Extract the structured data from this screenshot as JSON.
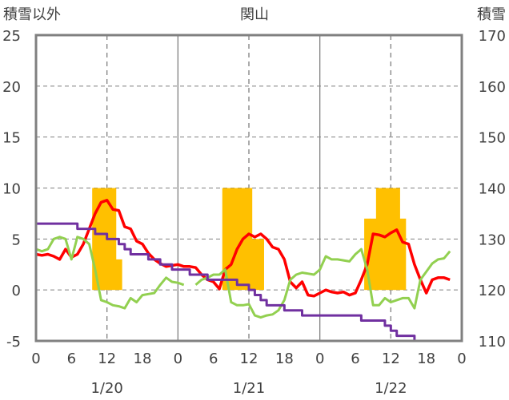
{
  "chart_data": {
    "type": "bar+line",
    "title": "関山",
    "left_axis_label": "積雪以外",
    "right_axis_label": "積雪",
    "left_ylim": [
      -5,
      25
    ],
    "left_ticks": [
      -5,
      0,
      5,
      10,
      15,
      20,
      25
    ],
    "right_ylim": [
      110,
      170
    ],
    "right_ticks": [
      110,
      120,
      130,
      140,
      150,
      160,
      170
    ],
    "xlim": [
      0,
      72
    ],
    "x_tick_positions": [
      0,
      6,
      12,
      18,
      24,
      30,
      36,
      42,
      48,
      54,
      60,
      66,
      72
    ],
    "x_tick_labels": [
      "0",
      "6",
      "12",
      "18",
      "0",
      "6",
      "12",
      "18",
      "0",
      "6",
      "12",
      "18",
      "0"
    ],
    "day_labels": [
      {
        "x": 12,
        "label": "1/20"
      },
      {
        "x": 36,
        "label": "1/21"
      },
      {
        "x": 60,
        "label": "1/22"
      }
    ],
    "grid": {
      "horizontal": "dashed",
      "day_separators": [
        24,
        48
      ],
      "noon_lines": [
        12,
        36,
        60
      ]
    },
    "series": [
      {
        "axis": "left",
        "kind": "bar",
        "color": "#FFC000",
        "points": [
          [
            10,
            10
          ],
          [
            11,
            10
          ],
          [
            12,
            10
          ],
          [
            13,
            10
          ],
          [
            14,
            3
          ],
          [
            32,
            10
          ],
          [
            33,
            10
          ],
          [
            34,
            10
          ],
          [
            35,
            10
          ],
          [
            36,
            10
          ],
          [
            37,
            5
          ],
          [
            38,
            5
          ],
          [
            56,
            7
          ],
          [
            57,
            7
          ],
          [
            58,
            10
          ],
          [
            59,
            10
          ],
          [
            60,
            10
          ],
          [
            61,
            10
          ],
          [
            62,
            7
          ]
        ]
      },
      {
        "axis": "left",
        "kind": "line",
        "color": "#FF0000",
        "points": [
          [
            0,
            3.5
          ],
          [
            1,
            3.4
          ],
          [
            2,
            3.5
          ],
          [
            3,
            3.3
          ],
          [
            4,
            3.0
          ],
          [
            5,
            4.0
          ],
          [
            6,
            3.2
          ],
          [
            7,
            3.5
          ],
          [
            8,
            4.5
          ],
          [
            9,
            6.0
          ],
          [
            10,
            7.5
          ],
          [
            11,
            8.6
          ],
          [
            12,
            8.8
          ],
          [
            13,
            7.9
          ],
          [
            14,
            7.8
          ],
          [
            15,
            6.2
          ],
          [
            16,
            6.0
          ],
          [
            17,
            4.8
          ],
          [
            18,
            4.5
          ],
          [
            19,
            3.6
          ],
          [
            20,
            3.0
          ],
          [
            21,
            2.6
          ],
          [
            22,
            2.3
          ],
          [
            23,
            2.4
          ],
          [
            24,
            2.5
          ],
          [
            25,
            2.3
          ],
          [
            26,
            2.3
          ],
          [
            27,
            2.2
          ],
          [
            28,
            1.5
          ],
          [
            29,
            1.0
          ],
          [
            30,
            0.8
          ],
          [
            31,
            0.1
          ],
          [
            32,
            2.0
          ],
          [
            33,
            2.5
          ],
          [
            34,
            4.0
          ],
          [
            35,
            5.0
          ],
          [
            36,
            5.5
          ],
          [
            37,
            5.2
          ],
          [
            38,
            5.5
          ],
          [
            39,
            5.0
          ],
          [
            40,
            4.2
          ],
          [
            41,
            4.0
          ],
          [
            42,
            3.0
          ],
          [
            43,
            0.8
          ],
          [
            44,
            0.2
          ],
          [
            45,
            0.8
          ],
          [
            46,
            -0.5
          ],
          [
            47,
            -0.6
          ],
          [
            48,
            -0.3
          ],
          [
            49,
            0.0
          ],
          [
            50,
            -0.2
          ],
          [
            51,
            -0.3
          ],
          [
            52,
            -0.2
          ],
          [
            53,
            -0.5
          ],
          [
            54,
            -0.3
          ],
          [
            55,
            1.0
          ],
          [
            56,
            2.5
          ],
          [
            57,
            5.5
          ],
          [
            58,
            5.4
          ],
          [
            59,
            5.2
          ],
          [
            60,
            5.6
          ],
          [
            61,
            5.9
          ],
          [
            62,
            4.7
          ],
          [
            63,
            4.5
          ],
          [
            64,
            2.5
          ],
          [
            65,
            1.0
          ],
          [
            66,
            -0.3
          ],
          [
            67,
            1.0
          ],
          [
            68,
            1.2
          ],
          [
            69,
            1.2
          ],
          [
            70,
            1.0
          ]
        ]
      },
      {
        "axis": "left",
        "kind": "line",
        "color": "#92D050",
        "points": [
          [
            0,
            4.0
          ],
          [
            1,
            3.8
          ],
          [
            2,
            4.0
          ],
          [
            3,
            5.0
          ],
          [
            4,
            5.2
          ],
          [
            5,
            5.0
          ],
          [
            6,
            3.0
          ],
          [
            7,
            5.2
          ],
          [
            8,
            5.0
          ],
          [
            9,
            4.5
          ],
          [
            10,
            2.0
          ],
          [
            11,
            -1.0
          ],
          [
            12,
            -1.2
          ],
          [
            13,
            -1.5
          ],
          [
            14,
            -1.6
          ],
          [
            15,
            -1.8
          ],
          [
            16,
            -0.8
          ],
          [
            17,
            -1.2
          ],
          [
            18,
            -0.5
          ],
          [
            19,
            -0.4
          ],
          [
            20,
            -0.3
          ],
          [
            21,
            0.5
          ],
          [
            22,
            1.2
          ],
          [
            23,
            0.8
          ],
          [
            24,
            0.7
          ],
          [
            25,
            0.5
          ],
          [
            27,
            0.5
          ],
          [
            28,
            1.0
          ],
          [
            29,
            1.2
          ],
          [
            30,
            1.5
          ],
          [
            31,
            1.5
          ],
          [
            32,
            2.0
          ],
          [
            33,
            -1.2
          ],
          [
            34,
            -1.5
          ],
          [
            35,
            -1.5
          ],
          [
            36,
            -1.4
          ],
          [
            37,
            -2.5
          ],
          [
            38,
            -2.7
          ],
          [
            39,
            -2.5
          ],
          [
            40,
            -2.4
          ],
          [
            41,
            -2.0
          ],
          [
            42,
            -1.0
          ],
          [
            43,
            1.0
          ],
          [
            44,
            1.5
          ],
          [
            45,
            1.7
          ],
          [
            46,
            1.6
          ],
          [
            47,
            1.5
          ],
          [
            48,
            2.0
          ],
          [
            49,
            3.3
          ],
          [
            50,
            3.0
          ],
          [
            51,
            3.0
          ],
          [
            52,
            2.9
          ],
          [
            53,
            2.8
          ],
          [
            54,
            3.5
          ],
          [
            55,
            4.0
          ],
          [
            56,
            2.0
          ],
          [
            57,
            -1.5
          ],
          [
            58,
            -1.5
          ],
          [
            59,
            -0.8
          ],
          [
            60,
            -1.2
          ],
          [
            61,
            -1.0
          ],
          [
            62,
            -0.8
          ],
          [
            63,
            -0.8
          ],
          [
            64,
            -1.8
          ],
          [
            65,
            1.0
          ],
          [
            66,
            1.8
          ],
          [
            67,
            2.6
          ],
          [
            68,
            3.0
          ],
          [
            69,
            3.1
          ],
          [
            70,
            3.8
          ]
        ]
      },
      {
        "axis": "right",
        "kind": "line",
        "color": "#7030A0",
        "points": [
          [
            0,
            133
          ],
          [
            6,
            133
          ],
          [
            7,
            132
          ],
          [
            8,
            132
          ],
          [
            9,
            132
          ],
          [
            10,
            131
          ],
          [
            11,
            131
          ],
          [
            12,
            130
          ],
          [
            13,
            130
          ],
          [
            14,
            129
          ],
          [
            15,
            128
          ],
          [
            16,
            127
          ],
          [
            17,
            127
          ],
          [
            18,
            127
          ],
          [
            19,
            126
          ],
          [
            20,
            126
          ],
          [
            21,
            125
          ],
          [
            22,
            125
          ],
          [
            23,
            124
          ],
          [
            24,
            124
          ],
          [
            25,
            124
          ],
          [
            26,
            123
          ],
          [
            27,
            123
          ],
          [
            28,
            123
          ],
          [
            29,
            122
          ],
          [
            30,
            122
          ],
          [
            31,
            122
          ],
          [
            32,
            122
          ],
          [
            33,
            122
          ],
          [
            34,
            121
          ],
          [
            35,
            121
          ],
          [
            36,
            120
          ],
          [
            37,
            119
          ],
          [
            38,
            118
          ],
          [
            39,
            117
          ],
          [
            40,
            117
          ],
          [
            41,
            117
          ],
          [
            42,
            116
          ],
          [
            43,
            116
          ],
          [
            44,
            116
          ],
          [
            45,
            115
          ],
          [
            46,
            115
          ],
          [
            47,
            115
          ],
          [
            48,
            115
          ],
          [
            54,
            115
          ],
          [
            55,
            114
          ],
          [
            56,
            114
          ],
          [
            57,
            114
          ],
          [
            58,
            114
          ],
          [
            59,
            113
          ],
          [
            60,
            112
          ],
          [
            61,
            111
          ],
          [
            62,
            111
          ],
          [
            63,
            111
          ],
          [
            64,
            110
          ],
          [
            70,
            110
          ]
        ]
      }
    ]
  }
}
